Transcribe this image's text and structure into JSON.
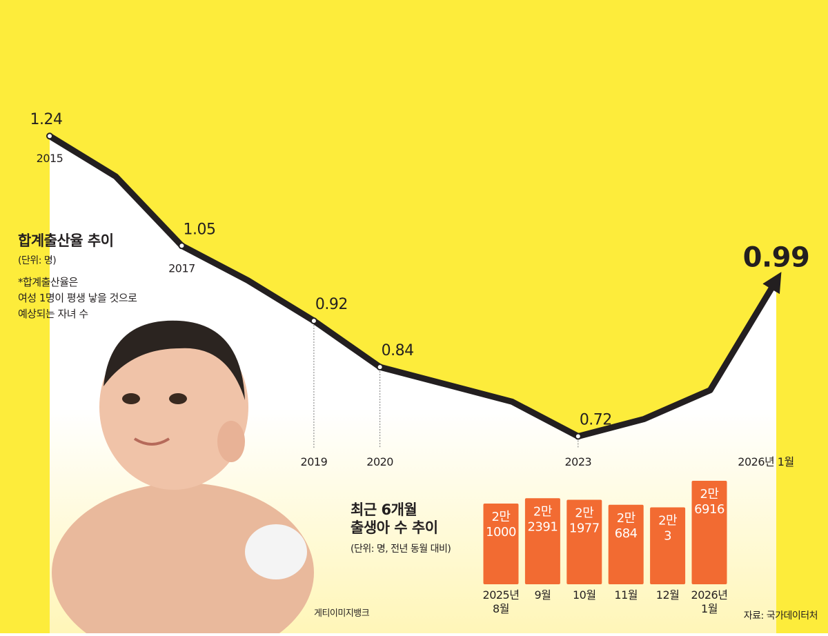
{
  "chart_data": [
    {
      "type": "line",
      "title": "합계출산율 추이",
      "subtitle": "(단위: 명)",
      "note": [
        "*합계출산율은",
        "여성 1명이 평생 낳을 것으로",
        "예상되는 자녀 수"
      ],
      "categories": [
        "2015",
        null,
        "2017",
        null,
        "2019",
        "2020",
        null,
        null,
        "2023",
        null,
        null,
        "2026년 1월"
      ],
      "values": [
        1.24,
        1.17,
        1.05,
        0.99,
        0.92,
        0.84,
        0.81,
        0.78,
        0.72,
        0.75,
        0.8,
        0.99
      ],
      "value_labels": [
        "1.24",
        null,
        "1.05",
        null,
        "0.92",
        "0.84",
        null,
        null,
        "0.72",
        null,
        null,
        "0.99"
      ],
      "color": "#231f20",
      "ylim": [
        0.6,
        1.3
      ]
    },
    {
      "type": "bar",
      "title": [
        "최근 6개월",
        "출생아 수 추이"
      ],
      "subtitle": "(단위: 명, 전년 동월 대비)",
      "categories": [
        [
          "2025년",
          "8월"
        ],
        [
          "9월"
        ],
        [
          "10월"
        ],
        [
          "11월"
        ],
        [
          "12월"
        ],
        [
          "2026년",
          "1월"
        ]
      ],
      "values": [
        21000,
        22391,
        21977,
        20684,
        20003,
        26916
      ],
      "value_labels": [
        [
          "2만",
          "1000"
        ],
        [
          "2만",
          "2391"
        ],
        [
          "2만",
          "1977"
        ],
        [
          "2만",
          "684"
        ],
        [
          "2만",
          "3"
        ],
        [
          "2만",
          "6916"
        ]
      ],
      "color": "#f26b32",
      "ylim": [
        0,
        28000
      ]
    }
  ],
  "credit": "게티이미지뱅크",
  "source": "자료: 국가데이터처"
}
